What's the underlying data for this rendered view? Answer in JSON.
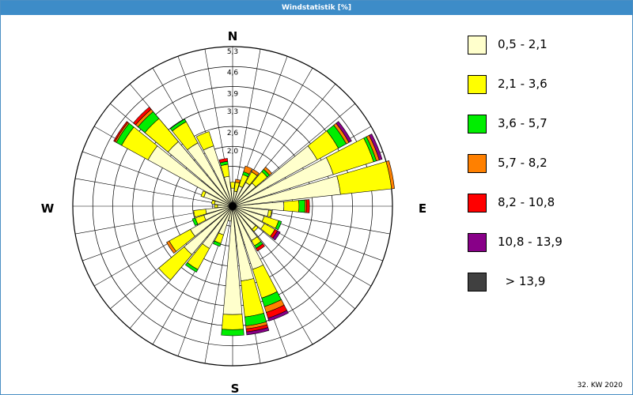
{
  "window": {
    "title": "Windstatistik [%]"
  },
  "footer": {
    "week_label": "32. KW 2020"
  },
  "chart_data": {
    "type": "windrose",
    "title": "Windstatistik [%]",
    "directions": [
      "N",
      "NNE",
      "NE",
      "ENE",
      "E",
      "ESE",
      "SE",
      "SSE",
      "S",
      "SSW",
      "SW",
      "WSW",
      "W",
      "WNW",
      "NW",
      "NNW"
    ],
    "cardinal_labels": [
      "N",
      "E",
      "S",
      "W"
    ],
    "radial_ticks": [
      {
        "value": 1.3,
        "label": ""
      },
      {
        "value": 2.0,
        "label": "2,0"
      },
      {
        "value": 2.6,
        "label": "2,6"
      },
      {
        "value": 3.3,
        "label": "3,3"
      },
      {
        "value": 3.9,
        "label": "3,9"
      },
      {
        "value": 4.6,
        "label": "4,6"
      },
      {
        "value": 5.3,
        "label": "5,3"
      }
    ],
    "radial_max": 5.3,
    "bins": [
      {
        "label": "0,5 - 2,1",
        "color": "#ffffcc"
      },
      {
        "label": "2,1 - 3,6",
        "color": "#ffff00"
      },
      {
        "label": "3,6 - 5,7",
        "color": "#00ee00"
      },
      {
        "label": "5,7 - 8,2",
        "color": "#ff8000"
      },
      {
        "label": "8,2 - 10,8",
        "color": "#ff0000"
      },
      {
        "label": "10,8 - 13,9",
        "color": "#880088"
      },
      {
        "label": "  > 13,9",
        "color": "#404040"
      }
    ],
    "sectors": [
      {
        "angle": 0,
        "values": [
          0.6,
          0.2,
          0.0,
          0.0,
          0.0,
          0.0,
          0.0
        ]
      },
      {
        "angle": 11.25,
        "values": [
          0.5,
          0.3,
          0.0,
          0.1,
          0.0,
          0.0,
          0.0
        ]
      },
      {
        "angle": 22.5,
        "values": [
          0.7,
          0.4,
          0.1,
          0.2,
          0.0,
          0.0,
          0.0
        ]
      },
      {
        "angle": 33.75,
        "values": [
          0.9,
          0.4,
          0.0,
          0.1,
          0.0,
          0.0,
          0.0
        ]
      },
      {
        "angle": 45,
        "values": [
          1.0,
          0.5,
          0.1,
          0.1,
          0.0,
          0.0,
          0.0
        ]
      },
      {
        "angle": 56.25,
        "values": [
          3.2,
          0.8,
          0.3,
          0.1,
          0.0,
          0.1,
          0.0
        ]
      },
      {
        "angle": 67.5,
        "values": [
          3.5,
          1.4,
          0.1,
          0.1,
          0.0,
          0.1,
          0.0
        ]
      },
      {
        "angle": 78.75,
        "values": [
          3.6,
          1.7,
          0.0,
          0.1,
          0.0,
          0.0,
          0.0
        ]
      },
      {
        "angle": 90,
        "values": [
          1.7,
          0.5,
          0.2,
          0.05,
          0.1,
          0.0,
          0.0
        ]
      },
      {
        "angle": 101.25,
        "values": [
          1.2,
          0.1,
          0.0,
          0.0,
          0.0,
          0.0,
          0.0
        ]
      },
      {
        "angle": 112.5,
        "values": [
          1.1,
          0.5,
          0.1,
          0.0,
          0.0,
          0.0,
          0.0
        ]
      },
      {
        "angle": 123.75,
        "values": [
          1.2,
          0.4,
          0.0,
          0.0,
          0.1,
          0.1,
          0.0
        ]
      },
      {
        "angle": 135,
        "values": [
          1.0,
          0.1,
          0.0,
          0.0,
          0.0,
          0.0,
          0.0
        ]
      },
      {
        "angle": 146.25,
        "values": [
          1.3,
          0.2,
          0.1,
          0.0,
          0.1,
          0.0,
          0.0
        ]
      },
      {
        "angle": 157.5,
        "values": [
          2.2,
          1.0,
          0.3,
          0.2,
          0.2,
          0.1,
          0.0
        ]
      },
      {
        "angle": 168.75,
        "values": [
          2.5,
          1.2,
          0.3,
          0.1,
          0.1,
          0.1,
          0.0
        ]
      },
      {
        "angle": 180,
        "values": [
          3.6,
          0.5,
          0.2,
          0.0,
          0.0,
          0.0,
          0.0
        ]
      },
      {
        "angle": 191.25,
        "values": [
          0.5,
          0.0,
          0.0,
          0.0,
          0.0,
          0.0,
          0.0
        ]
      },
      {
        "angle": 202.5,
        "values": [
          1.0,
          0.3,
          0.1,
          0.0,
          0.0,
          0.0,
          0.0
        ]
      },
      {
        "angle": 213.75,
        "values": [
          1.6,
          0.8,
          0.1,
          0.0,
          0.0,
          0.0,
          0.0
        ]
      },
      {
        "angle": 225,
        "values": [
          2.1,
          1.1,
          0.0,
          0.0,
          0.0,
          0.0,
          0.0
        ]
      },
      {
        "angle": 236.25,
        "values": [
          1.6,
          0.8,
          0.0,
          0.1,
          0.0,
          0.0,
          0.0
        ]
      },
      {
        "angle": 247.5,
        "values": [
          1.0,
          0.3,
          0.1,
          0.0,
          0.0,
          0.0,
          0.0
        ]
      },
      {
        "angle": 258.75,
        "values": [
          0.9,
          0.4,
          0.0,
          0.0,
          0.0,
          0.0,
          0.0
        ]
      },
      {
        "angle": 270,
        "values": [
          0.5,
          0.1,
          0.0,
          0.0,
          0.0,
          0.0,
          0.0
        ]
      },
      {
        "angle": 281.25,
        "values": [
          0.6,
          0.1,
          0.0,
          0.0,
          0.0,
          0.0,
          0.0
        ]
      },
      {
        "angle": 292.5,
        "values": [
          1.0,
          0.1,
          0.0,
          0.0,
          0.0,
          0.0,
          0.0
        ]
      },
      {
        "angle": 303.75,
        "values": [
          3.2,
          1.0,
          0.2,
          0.05,
          0.05,
          0.0,
          0.0
        ]
      },
      {
        "angle": 315,
        "values": [
          2.8,
          1.0,
          0.3,
          0.1,
          0.1,
          0.0,
          0.0
        ]
      },
      {
        "angle": 326.25,
        "values": [
          2.4,
          0.8,
          0.1,
          0.0,
          0.0,
          0.0,
          0.0
        ]
      },
      {
        "angle": 337.5,
        "values": [
          2.1,
          0.5,
          0.0,
          0.0,
          0.0,
          0.0,
          0.0
        ]
      },
      {
        "angle": 348.75,
        "values": [
          1.0,
          0.4,
          0.1,
          0.0,
          0.1,
          0.0,
          0.0
        ]
      }
    ]
  }
}
